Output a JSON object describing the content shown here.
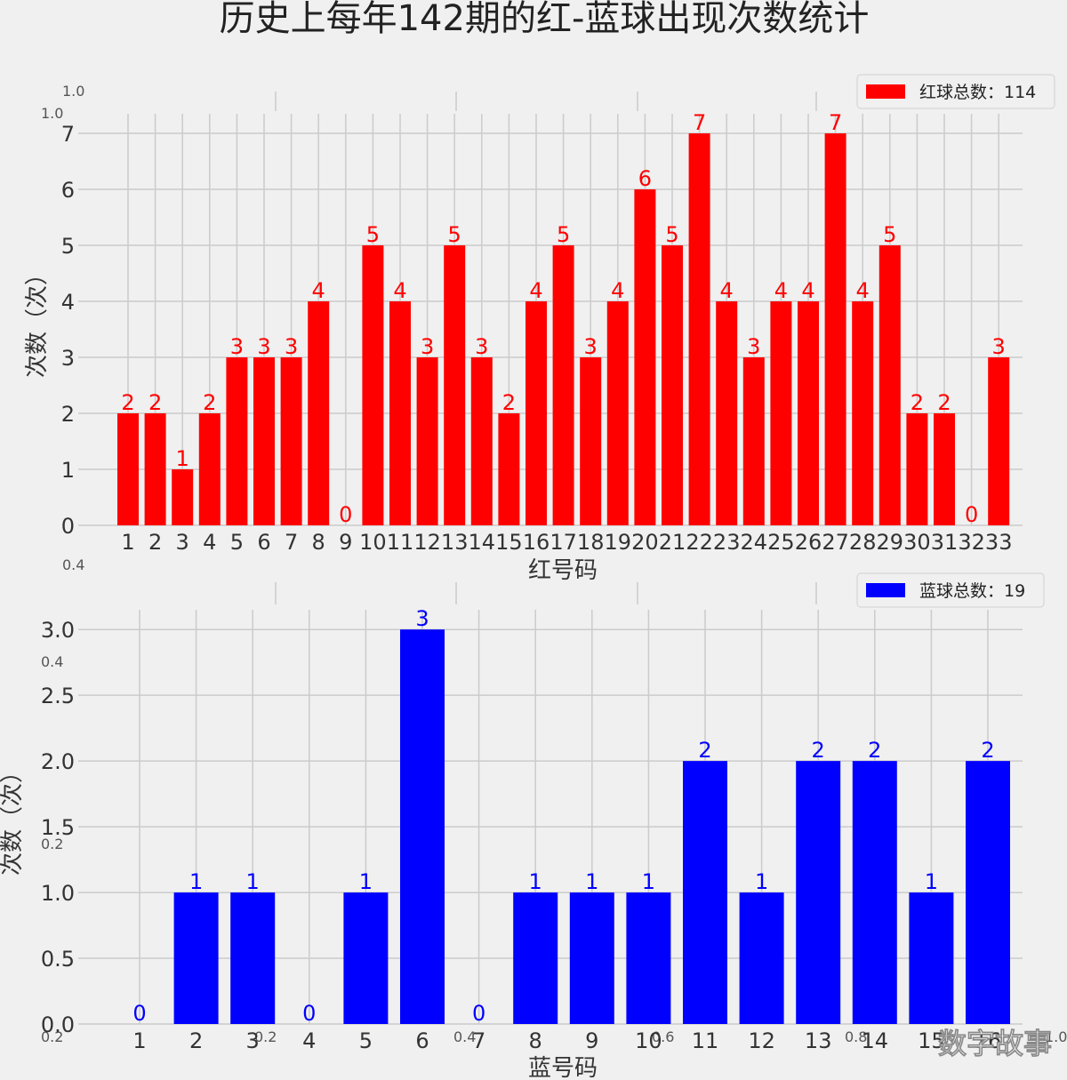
{
  "title": "历史上每年142期的红-蓝球出现次数统计",
  "watermark": "数字故事",
  "background_axis_ticks": [
    "1.0",
    "1.0",
    "0.8",
    "0.6",
    "0.4",
    "0.2",
    "0.0",
    "0.2",
    "0.4",
    "0.6",
    "0.8",
    "1.0"
  ],
  "colors": {
    "red": "#ff0000",
    "blue": "#0000ff",
    "grid": "#cbcbcb",
    "background": "#f0f0f0"
  },
  "chart_data": [
    {
      "type": "bar",
      "color": "red",
      "categories": [
        "1",
        "2",
        "3",
        "4",
        "5",
        "6",
        "7",
        "8",
        "9",
        "10",
        "11",
        "12",
        "13",
        "14",
        "15",
        "16",
        "17",
        "18",
        "19",
        "20",
        "21",
        "22",
        "23",
        "24",
        "25",
        "26",
        "27",
        "28",
        "29",
        "30",
        "31",
        "32",
        "33"
      ],
      "values": [
        2,
        2,
        1,
        2,
        3,
        3,
        3,
        4,
        0,
        5,
        4,
        3,
        5,
        3,
        2,
        4,
        5,
        3,
        4,
        6,
        5,
        7,
        4,
        3,
        4,
        4,
        7,
        4,
        5,
        2,
        2,
        0,
        3
      ],
      "xlabel": "红号码",
      "ylabel": "次数（次）",
      "ylim": [
        0,
        7.35
      ],
      "yticks": [
        "0",
        "1",
        "2",
        "3",
        "4",
        "5",
        "6",
        "7"
      ],
      "legend": "红球总数：114",
      "legend_position": "top-right",
      "grid": true
    },
    {
      "type": "bar",
      "color": "blue",
      "categories": [
        "1",
        "2",
        "3",
        "4",
        "5",
        "6",
        "7",
        "8",
        "9",
        "10",
        "11",
        "12",
        "13",
        "14",
        "15",
        "16"
      ],
      "values": [
        0,
        1,
        1,
        0,
        1,
        3,
        0,
        1,
        1,
        1,
        2,
        1,
        2,
        2,
        1,
        2
      ],
      "xlabel": "蓝号码",
      "ylabel": "次数（次）",
      "ylim": [
        0,
        3.15
      ],
      "yticks": [
        "0.0",
        "0.5",
        "1.0",
        "1.5",
        "2.0",
        "2.5",
        "3.0"
      ],
      "legend": "蓝球总数：19",
      "legend_position": "top-right",
      "grid": true
    }
  ]
}
